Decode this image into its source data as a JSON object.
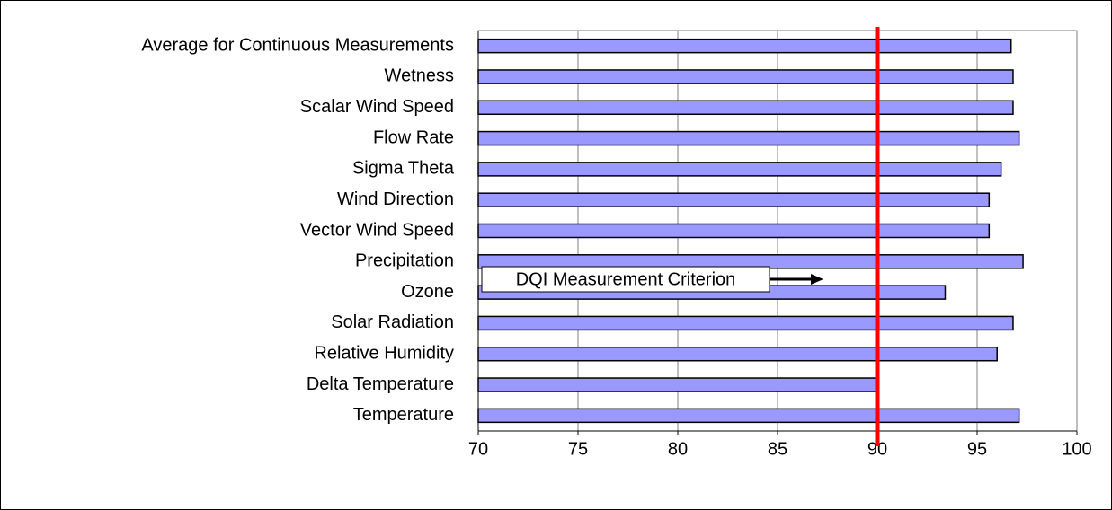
{
  "chart_data": {
    "type": "hbar",
    "categories": [
      "Average for Continuous Measurements",
      "Wetness",
      "Scalar Wind Speed",
      "Flow Rate",
      "Sigma Theta",
      "Wind Direction",
      "Vector Wind Speed",
      "Precipitation",
      "Ozone",
      "Solar Radiation",
      "Relative Humidity",
      "Delta Temperature",
      "Temperature"
    ],
    "values": [
      96.7,
      96.8,
      96.8,
      97.1,
      96.2,
      95.6,
      95.6,
      97.3,
      93.4,
      96.8,
      96.0,
      90.0,
      97.1
    ],
    "color": "#9999ff",
    "xlim": [
      70,
      100
    ],
    "xticks": [
      70,
      75,
      80,
      85,
      90,
      95,
      100
    ],
    "grid": true,
    "criterion": {
      "value": 90,
      "color": "#ff0000",
      "label": "DQI Measurement Criterion"
    }
  }
}
